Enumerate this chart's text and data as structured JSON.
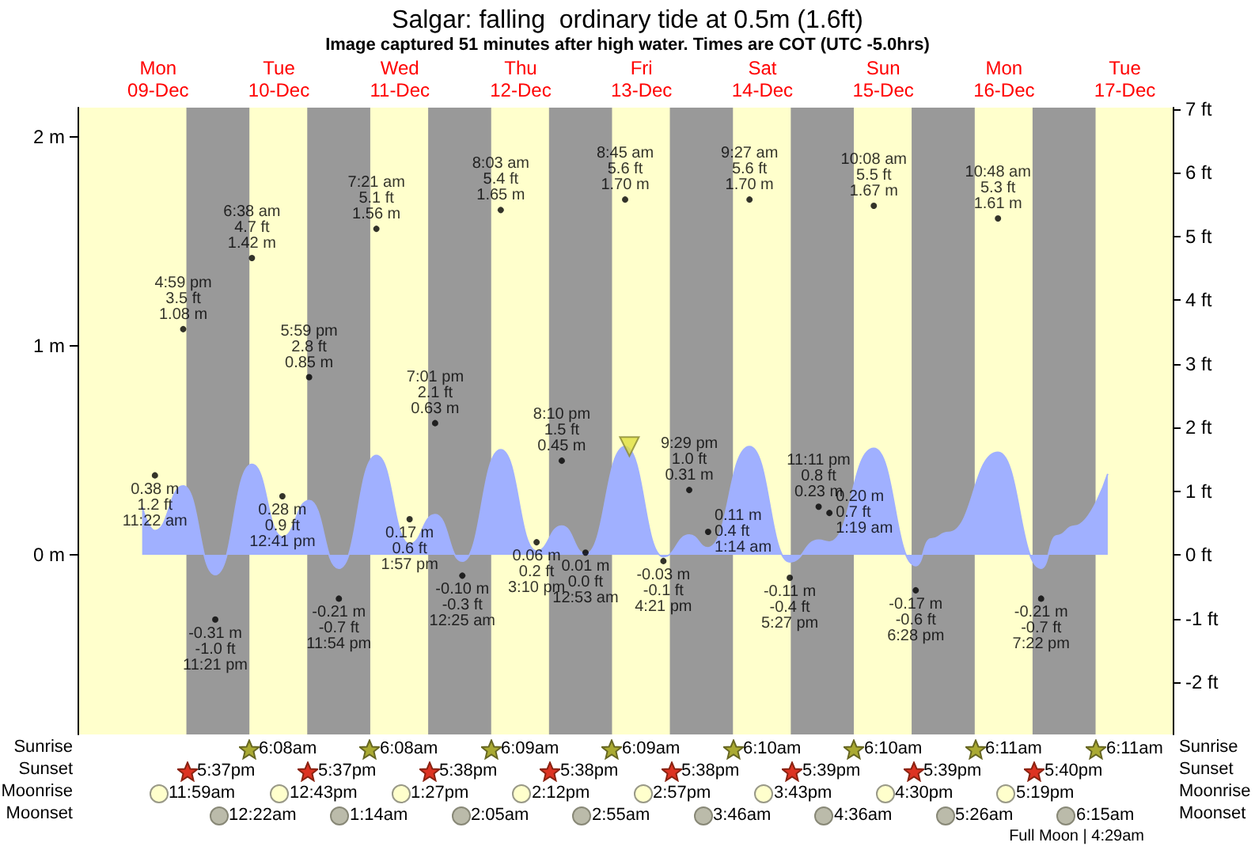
{
  "chart_data": {
    "type": "area",
    "title": "Salgar: falling  ordinary tide at 0.5m (1.6ft)",
    "subtitle": "Image captured 51 minutes after high water. Times are COT (UTC -5.0hrs)",
    "xlim": [
      "--12-08T20:00",
      "--12-17T21:30"
    ],
    "xticks": [
      {
        "value": "--12-09T12:00",
        "label": "Mon\n09-Dec"
      },
      {
        "value": "--12-10T12:00",
        "label": "Tue\n10-Dec"
      },
      {
        "value": "--12-11T12:00",
        "label": "Wed\n11-Dec"
      },
      {
        "value": "--12-12T12:00",
        "label": "Thu\n12-Dec"
      },
      {
        "value": "--12-13T12:00",
        "label": "Fri\n13-Dec"
      },
      {
        "value": "--12-14T12:00",
        "label": "Sat\n14-Dec"
      },
      {
        "value": "--12-15T12:00",
        "label": "Sun\n15-Dec"
      },
      {
        "value": "--12-16T12:00",
        "label": "Mon\n16-Dec"
      },
      {
        "value": "--12-17T12:00",
        "label": "Tue\n17-Dec"
      }
    ],
    "ylim": [
      -0.86,
      2.14
    ],
    "yticks": [
      {
        "value": 0,
        "label": "0 m"
      },
      {
        "value": 1,
        "label": "1 m"
      },
      {
        "value": 2,
        "label": "2 m"
      }
    ],
    "y2lim": [
      -2.82,
      7.02
    ],
    "y2ticks": [
      {
        "value": -2,
        "label": "-2 ft"
      },
      {
        "value": -1,
        "label": "-1 ft"
      },
      {
        "value": 0,
        "label": "0 ft"
      },
      {
        "value": 1,
        "label": "1 ft"
      },
      {
        "value": 2,
        "label": "2 ft"
      },
      {
        "value": 3,
        "label": "3 ft"
      },
      {
        "value": 4,
        "label": "4 ft"
      },
      {
        "value": 5,
        "label": "5 ft"
      },
      {
        "value": 6,
        "label": "6 ft"
      },
      {
        "value": 7,
        "label": "7 ft"
      }
    ],
    "series": [
      {
        "type": "area",
        "axis": "y2",
        "color": "#a0b0ff",
        "marker": "none",
        "x": [
          "--12-09T08:50",
          "--12-09T11:22",
          "--12-09T16:59",
          "--12-09T23:21",
          "--12-10T06:38",
          "--12-10T12:41",
          "--12-10T17:59",
          "--12-10T23:54",
          "--12-11T07:21",
          "--12-11T13:57",
          "--12-11T19:01",
          "--12-12T00:25",
          "--12-12T08:03",
          "--12-12T15:10",
          "--12-12T20:10",
          "--12-13T00:53",
          "--12-13T08:45",
          "--12-13T16:21",
          "--12-13T21:29",
          "--12-14T01:14",
          "--12-14T09:27",
          "--12-14T17:27",
          "--12-14T23:11",
          "--12-15T01:19",
          "--12-15T10:08",
          "--12-15T18:28",
          "--12-15T21:30",
          "--12-16T01:00",
          "--12-16T10:48",
          "--12-16T19:22",
          "--12-16T22:30",
          "--12-17T02:00",
          "--12-17T08:36"
        ],
        "values": [
          0.75,
          0.38,
          1.08,
          -0.31,
          1.42,
          0.28,
          0.85,
          -0.21,
          1.56,
          0.17,
          0.63,
          -0.1,
          1.65,
          0.06,
          0.45,
          0.01,
          1.7,
          -0.03,
          0.31,
          0.11,
          1.7,
          -0.11,
          0.23,
          0.2,
          1.67,
          -0.17,
          0.25,
          0.35,
          1.61,
          -0.21,
          0.3,
          0.45,
          1.27
        ]
      },
      {
        "type": "scatter",
        "axis": "y",
        "color": "#000000",
        "marker": "circle",
        "x": [
          "--12-09T11:22",
          "--12-09T16:59",
          "--12-09T23:21",
          "--12-10T06:38",
          "--12-10T12:41",
          "--12-10T17:59",
          "--12-10T23:54",
          "--12-11T07:21",
          "--12-11T13:57",
          "--12-11T19:01",
          "--12-12T00:25",
          "--12-12T08:03",
          "--12-12T15:10",
          "--12-12T20:10",
          "--12-13T00:53",
          "--12-13T08:45",
          "--12-13T16:21",
          "--12-13T21:29",
          "--12-14T01:14",
          "--12-14T09:27",
          "--12-14T17:27",
          "--12-14T23:11",
          "--12-15T01:19",
          "--12-15T10:08",
          "--12-15T18:28",
          "--12-16T10:48",
          "--12-16T19:22"
        ],
        "values": [
          0.38,
          1.08,
          -0.31,
          1.42,
          0.28,
          0.85,
          -0.21,
          1.56,
          0.17,
          0.63,
          -0.1,
          1.65,
          0.06,
          0.45,
          0.01,
          1.7,
          -0.03,
          0.31,
          0.11,
          1.7,
          -0.11,
          0.23,
          0.2,
          1.67,
          -0.17,
          1.61,
          -0.21
        ],
        "value_labels": [
          "0.38 m\n1.2 ft\n11:22 am",
          "4:59 pm\n3.5 ft\n1.08 m",
          "-0.31 m\n-1.0 ft\n11:21 pm",
          "6:38 am\n4.7 ft\n1.42 m",
          "0.28 m\n0.9 ft\n12:41 pm",
          "5:59 pm\n2.8 ft\n0.85 m",
          "-0.21 m\n-0.7 ft\n11:54 pm",
          "7:21 am\n5.1 ft\n1.56 m",
          "0.17 m\n0.6 ft\n1:57 pm",
          "7:01 pm\n2.1 ft\n0.63 m",
          "-0.10 m\n-0.3 ft\n12:25 am",
          "8:03 am\n5.4 ft\n1.65 m",
          "0.06 m\n0.2 ft\n3:10 pm",
          "8:10 pm\n1.5 ft\n0.45 m",
          "0.01 m\n0.0 ft\n12:53 am",
          "8:45 am\n5.6 ft\n1.70 m",
          "-0.03 m\n-0.1 ft\n4:21 pm",
          "9:29 pm\n1.0 ft\n0.31 m",
          "0.11 m\n0.4 ft\n1:14 am",
          "9:27 am\n5.6 ft\n1.70 m",
          "-0.11 m\n-0.4 ft\n5:27 pm",
          "11:11 pm\n0.8 ft\n0.23 m",
          "0.20 m\n0.7 ft\n1:19 am",
          "10:08 am\n5.5 ft\n1.67 m",
          "-0.17 m\n-0.6 ft\n6:28 pm",
          "10:48 am\n5.3 ft\n1.61 m",
          "-0.21 m\n-0.7 ft\n7:22 pm"
        ]
      },
      {
        "type": "scatter",
        "axis": "y2",
        "color": "#e0e040",
        "marker": "triangle",
        "x": [
          "--12-13T09:36"
        ],
        "values": [
          1.7
        ]
      }
    ],
    "bands": [
      {
        "axis": "x",
        "from": "--12-09T17:37",
        "to": "--12-10T06:08",
        "color": "#999999"
      },
      {
        "axis": "x",
        "from": "--12-10T17:37",
        "to": "--12-11T06:08",
        "color": "#999999"
      },
      {
        "axis": "x",
        "from": "--12-11T17:38",
        "to": "--12-12T06:09",
        "color": "#999999"
      },
      {
        "axis": "x",
        "from": "--12-12T17:38",
        "to": "--12-13T06:09",
        "color": "#999999"
      },
      {
        "axis": "x",
        "from": "--12-13T17:38",
        "to": "--12-14T06:10",
        "color": "#999999"
      },
      {
        "axis": "x",
        "from": "--12-14T17:39",
        "to": "--12-15T06:10",
        "color": "#999999"
      },
      {
        "axis": "x",
        "from": "--12-15T17:39",
        "to": "--12-16T06:11",
        "color": "#999999"
      },
      {
        "axis": "x",
        "from": "--12-16T17:40",
        "to": "--12-17T06:11",
        "color": "#999999"
      }
    ],
    "annotations": [
      "Sunrise",
      "6:08am",
      "6:08am",
      "6:09am",
      "6:09am",
      "6:10am",
      "6:10am",
      "6:11am",
      "6:11am",
      "Sunrise",
      "Sunset",
      "5:37pm",
      "5:37pm",
      "5:38pm",
      "5:38pm",
      "5:38pm",
      "5:39pm",
      "5:39pm",
      "5:40pm",
      "Sunset",
      "Moonrise",
      "11:59am",
      "12:43pm",
      "1:27pm",
      "2:12pm",
      "2:57pm",
      "3:43pm",
      "4:30pm",
      "5:19pm",
      "Moonrise",
      "Moonset",
      "12:22am",
      "1:14am",
      "2:05am",
      "2:55am",
      "3:46am",
      "4:36am",
      "5:26am",
      "6:15am",
      "Moonset",
      "Full Moon | 4:29am"
    ]
  }
}
